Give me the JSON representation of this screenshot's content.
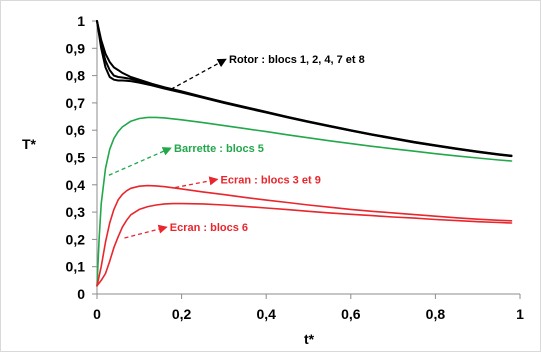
{
  "chart_data": {
    "type": "line",
    "title": "",
    "xlabel": "t*",
    "ylabel": "T*",
    "xlim": [
      0,
      1
    ],
    "ylim": [
      0,
      1
    ],
    "grid": false,
    "legend": "none",
    "x_ticks": [
      "0",
      "0,2",
      "0,4",
      "0,6",
      "0,8",
      "1"
    ],
    "y_ticks": [
      "0",
      "0,1",
      "0,2",
      "0,3",
      "0,4",
      "0,5",
      "0,6",
      "0,7",
      "0,8",
      "0,9",
      "1"
    ],
    "colors": {
      "rotor": "#000000",
      "barrette": "#22a84a",
      "ecran": "#e8262c"
    },
    "series": [
      {
        "group": "rotor",
        "x": [
          0,
          0.01,
          0.02,
          0.03,
          0.04,
          0.05,
          0.06,
          0.08,
          0.1,
          0.13,
          0.16,
          0.2,
          0.25,
          0.3,
          0.35,
          0.4,
          0.45,
          0.5,
          0.55,
          0.6,
          0.65,
          0.7,
          0.75,
          0.8,
          0.85,
          0.9,
          0.95,
          0.98
        ],
        "y": [
          1.0,
          0.93,
          0.88,
          0.85,
          0.83,
          0.82,
          0.81,
          0.795,
          0.785,
          0.77,
          0.757,
          0.742,
          0.722,
          0.703,
          0.685,
          0.667,
          0.649,
          0.632,
          0.616,
          0.6,
          0.585,
          0.571,
          0.557,
          0.545,
          0.533,
          0.522,
          0.512,
          0.507
        ]
      },
      {
        "group": "rotor",
        "x": [
          0,
          0.01,
          0.02,
          0.03,
          0.04,
          0.05,
          0.06,
          0.08,
          0.1,
          0.13,
          0.16,
          0.2,
          0.25,
          0.3,
          0.35,
          0.4,
          0.45,
          0.5,
          0.55,
          0.6,
          0.65,
          0.7,
          0.75,
          0.8,
          0.85,
          0.9,
          0.95,
          0.98
        ],
        "y": [
          1.0,
          0.91,
          0.855,
          0.82,
          0.8,
          0.795,
          0.793,
          0.788,
          0.78,
          0.768,
          0.755,
          0.74,
          0.72,
          0.701,
          0.683,
          0.666,
          0.648,
          0.631,
          0.615,
          0.599,
          0.584,
          0.57,
          0.556,
          0.544,
          0.532,
          0.521,
          0.511,
          0.506
        ]
      },
      {
        "group": "rotor",
        "x": [
          0,
          0.01,
          0.02,
          0.03,
          0.04,
          0.05,
          0.06,
          0.08,
          0.1,
          0.13,
          0.16,
          0.2,
          0.25,
          0.3,
          0.35,
          0.4,
          0.45,
          0.5,
          0.55,
          0.6,
          0.65,
          0.7,
          0.75,
          0.8,
          0.85,
          0.9,
          0.95,
          0.98
        ],
        "y": [
          1.0,
          0.9,
          0.83,
          0.795,
          0.785,
          0.782,
          0.782,
          0.78,
          0.774,
          0.764,
          0.752,
          0.738,
          0.719,
          0.7,
          0.682,
          0.665,
          0.647,
          0.63,
          0.614,
          0.598,
          0.583,
          0.569,
          0.555,
          0.543,
          0.531,
          0.52,
          0.51,
          0.505
        ]
      },
      {
        "group": "barrette",
        "x": [
          0,
          0.005,
          0.01,
          0.02,
          0.03,
          0.04,
          0.05,
          0.06,
          0.08,
          0.1,
          0.12,
          0.14,
          0.16,
          0.2,
          0.25,
          0.3,
          0.35,
          0.4,
          0.45,
          0.5,
          0.55,
          0.6,
          0.65,
          0.7,
          0.75,
          0.8,
          0.85,
          0.9,
          0.95,
          0.98
        ],
        "y": [
          0.03,
          0.2,
          0.33,
          0.46,
          0.53,
          0.57,
          0.595,
          0.612,
          0.633,
          0.643,
          0.647,
          0.647,
          0.645,
          0.638,
          0.628,
          0.617,
          0.606,
          0.595,
          0.583,
          0.572,
          0.561,
          0.551,
          0.541,
          0.532,
          0.523,
          0.514,
          0.506,
          0.498,
          0.491,
          0.487
        ]
      },
      {
        "group": "ecran",
        "x": [
          0,
          0.01,
          0.02,
          0.03,
          0.04,
          0.05,
          0.06,
          0.07,
          0.08,
          0.1,
          0.12,
          0.14,
          0.16,
          0.2,
          0.25,
          0.3,
          0.35,
          0.4,
          0.45,
          0.5,
          0.55,
          0.6,
          0.65,
          0.7,
          0.75,
          0.8,
          0.85,
          0.9,
          0.95,
          0.98
        ],
        "y": [
          0.03,
          0.1,
          0.19,
          0.26,
          0.31,
          0.345,
          0.365,
          0.378,
          0.387,
          0.395,
          0.397,
          0.396,
          0.393,
          0.385,
          0.374,
          0.364,
          0.354,
          0.344,
          0.335,
          0.326,
          0.318,
          0.31,
          0.303,
          0.297,
          0.291,
          0.285,
          0.279,
          0.274,
          0.27,
          0.268
        ]
      },
      {
        "group": "ecran",
        "x": [
          0,
          0.01,
          0.02,
          0.03,
          0.04,
          0.05,
          0.06,
          0.07,
          0.08,
          0.1,
          0.12,
          0.14,
          0.16,
          0.18,
          0.2,
          0.25,
          0.3,
          0.35,
          0.4,
          0.45,
          0.5,
          0.55,
          0.6,
          0.65,
          0.7,
          0.75,
          0.8,
          0.85,
          0.9,
          0.95,
          0.98
        ],
        "y": [
          0.03,
          0.05,
          0.075,
          0.12,
          0.17,
          0.21,
          0.245,
          0.27,
          0.29,
          0.31,
          0.32,
          0.326,
          0.33,
          0.331,
          0.331,
          0.33,
          0.326,
          0.321,
          0.315,
          0.309,
          0.303,
          0.297,
          0.292,
          0.287,
          0.282,
          0.278,
          0.273,
          0.269,
          0.265,
          0.262,
          0.26
        ]
      }
    ],
    "annotations": [
      {
        "text": "Rotor : blocs 1, 2, 4, 7 et 8",
        "color": "#000000",
        "arrow_from": [
          0.175,
          0.75
        ],
        "arrow_to": [
          0.305,
          0.86
        ]
      },
      {
        "text": "Barrette : blocs 5",
        "color": "#22a84a",
        "arrow_from": [
          0.028,
          0.435
        ],
        "arrow_to": [
          0.175,
          0.535
        ]
      },
      {
        "text": "Ecran : blocs 3 et 9",
        "color": "#e8262c",
        "arrow_from": [
          0.185,
          0.39
        ],
        "arrow_to": [
          0.285,
          0.42
        ]
      },
      {
        "text": "Ecran : blocs 6",
        "color": "#e8262c",
        "arrow_from": [
          0.065,
          0.205
        ],
        "arrow_to": [
          0.165,
          0.245
        ]
      }
    ]
  }
}
